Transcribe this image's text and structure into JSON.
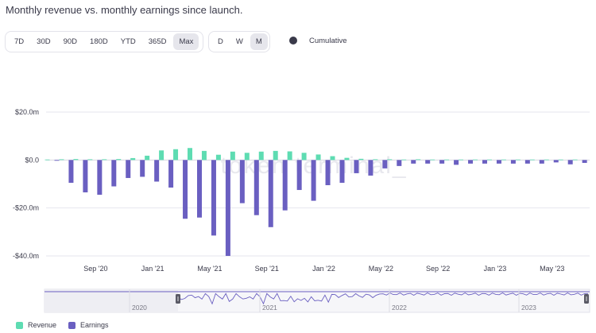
{
  "title": "Monthly revenue vs. monthly earnings since launch.",
  "range_buttons": [
    "7D",
    "30D",
    "90D",
    "180D",
    "YTD",
    "365D",
    "Max"
  ],
  "range_selected": "Max",
  "interval_buttons": [
    "D",
    "W",
    "M"
  ],
  "interval_selected": "M",
  "cumulative_label": "Cumulative",
  "watermark": "token terminal_",
  "colors": {
    "revenue": "#5edcb2",
    "earnings": "#6a5fc1",
    "grid": "#e6e6ee",
    "zero_line": "#d8d8e0"
  },
  "chart_data": {
    "type": "bar",
    "title": "Monthly revenue vs. monthly earnings since launch.",
    "ylim": [
      -40000000,
      20000000
    ],
    "y_ticks": [
      {
        "value": 20000000,
        "label": "$20.0m"
      },
      {
        "value": 0,
        "label": "$0.0"
      },
      {
        "value": -20000000,
        "label": "-$20.0m"
      },
      {
        "value": -40000000,
        "label": "-$40.0m"
      }
    ],
    "x_ticks": [
      {
        "index": 3,
        "label": "Sep '20"
      },
      {
        "index": 7,
        "label": "Jan '21"
      },
      {
        "index": 11,
        "label": "May '21"
      },
      {
        "index": 15,
        "label": "Sep '21"
      },
      {
        "index": 19,
        "label": "Jan '22"
      },
      {
        "index": 23,
        "label": "May '22"
      },
      {
        "index": 27,
        "label": "Sep '22"
      },
      {
        "index": 31,
        "label": "Jan '23"
      },
      {
        "index": 35,
        "label": "May '23"
      }
    ],
    "categories": [
      "Jun '20",
      "Jul '20",
      "Aug '20",
      "Sep '20",
      "Oct '20",
      "Nov '20",
      "Dec '20",
      "Jan '21",
      "Feb '21",
      "Mar '21",
      "Apr '21",
      "May '21",
      "Jun '21",
      "Jul '21",
      "Aug '21",
      "Sep '21",
      "Oct '21",
      "Nov '21",
      "Dec '21",
      "Jan '22",
      "Feb '22",
      "Mar '22",
      "Apr '22",
      "May '22",
      "Jun '22",
      "Jul '22",
      "Aug '22",
      "Sep '22",
      "Oct '22",
      "Nov '22",
      "Dec '22",
      "Jan '23",
      "Feb '23",
      "Mar '23",
      "Apr '23",
      "May '23",
      "Jun '23",
      "Jul '23"
    ],
    "series": [
      {
        "name": "Revenue",
        "values": [
          0.2,
          0.3,
          0.4,
          0.3,
          0.3,
          0.4,
          0.8,
          1.8,
          4.0,
          4.5,
          5.0,
          3.8,
          2.2,
          3.5,
          3.0,
          3.5,
          3.8,
          3.6,
          3.0,
          2.3,
          1.6,
          0.9,
          0.5,
          0.3,
          0.3,
          0.2,
          0.3,
          0.2,
          0.2,
          0.2,
          0.2,
          0.2,
          0.2,
          0.2,
          0.2,
          0.2,
          0.2,
          0.2
        ]
      },
      {
        "name": "Earnings",
        "values": [
          -0.3,
          -9.5,
          -13.5,
          -14.5,
          -11,
          -7.5,
          -7,
          -9,
          -11.5,
          -24.5,
          -24,
          -31.5,
          -40,
          -18,
          -23,
          -28,
          -21,
          -12.5,
          -17,
          -10.5,
          -9.5,
          -5.5,
          -6.5,
          -3.5,
          -2.5,
          -1.5,
          -1.5,
          -1.5,
          -2,
          -1.5,
          -1.5,
          -1.5,
          -1.5,
          -1.5,
          -1.5,
          -1.0,
          -1.8,
          -1.2
        ]
      }
    ],
    "value_unit": "$m",
    "legend": [
      "Revenue",
      "Earnings"
    ],
    "legend_position": "bottom-left",
    "navigator_labels": [
      "2020",
      "2021",
      "2022",
      "2023"
    ]
  }
}
